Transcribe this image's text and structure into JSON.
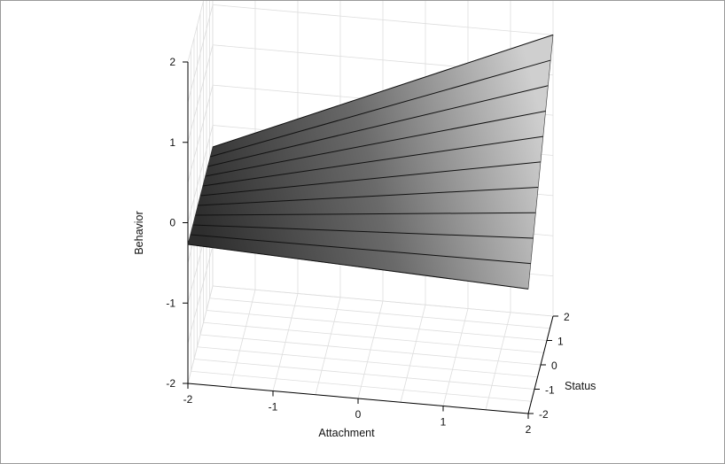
{
  "chart_data": {
    "type": "surface",
    "title": "",
    "xlabel": "Attachment",
    "ylabel": "Status",
    "zlabel": "Behavior",
    "xlim": [
      -2,
      2
    ],
    "ylim": [
      -2,
      2
    ],
    "zlim": [
      -2,
      2
    ],
    "x_ticks": [
      "-2",
      "-1",
      "0",
      "1",
      "2"
    ],
    "y_ticks": [
      "-2",
      "-1",
      "0",
      "1",
      "2"
    ],
    "z_ticks": [
      "-2",
      "-1",
      "0",
      "1",
      "2"
    ],
    "grid": true,
    "surface": {
      "description_points": [
        {
          "attachment": -2,
          "status": -2,
          "behavior": -0.27
        },
        {
          "attachment": -2,
          "status": 2,
          "behavior": -0.27
        },
        {
          "attachment": 2,
          "status": -2,
          "behavior": -0.45
        },
        {
          "attachment": 2,
          "status": 2,
          "behavior": 1.5
        }
      ],
      "contour_lines": 10
    },
    "colors": {
      "surface_dark": "#555555",
      "surface_light": "#d8d8d8",
      "contour": "#111111",
      "grid": "#dddddd",
      "axis": "#000000"
    }
  }
}
